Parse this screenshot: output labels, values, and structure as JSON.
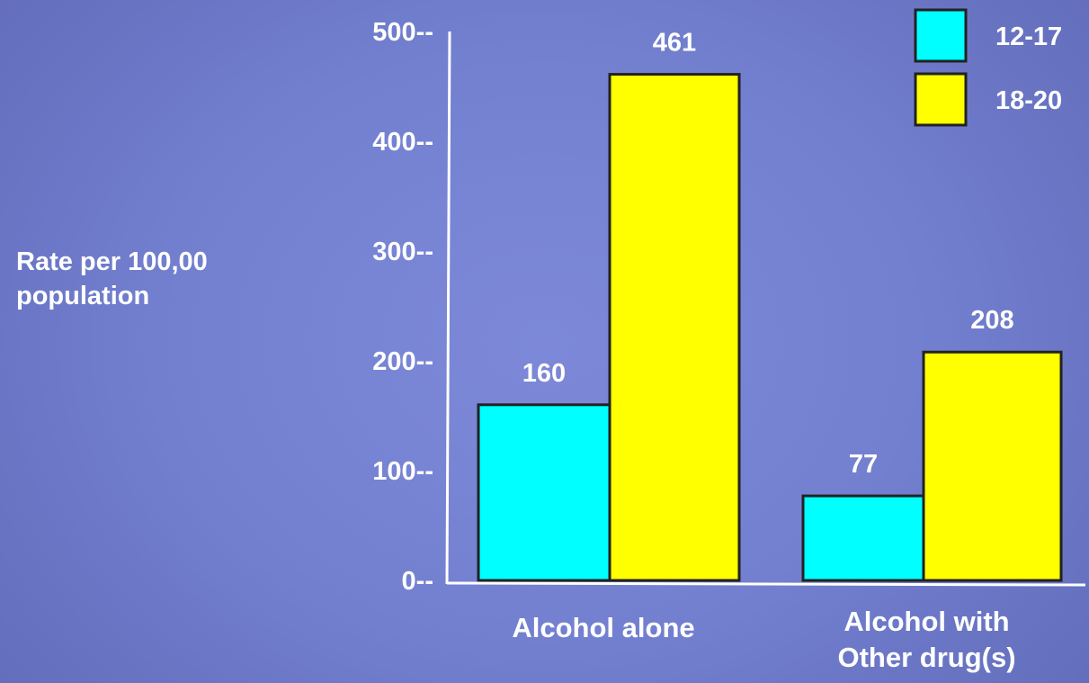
{
  "chart_data": {
    "type": "bar",
    "title": "",
    "xlabel": "",
    "ylabel": "Rate per 100,00\npopulation",
    "categories": [
      [
        "Alcohol alone"
      ],
      [
        "Alcohol with",
        "Other drug(s)"
      ]
    ],
    "series": [
      {
        "name": "12-17",
        "color": "#00ffff",
        "values": [
          160,
          77
        ]
      },
      {
        "name": "18-20",
        "color": "#ffff00",
        "values": [
          461,
          208
        ]
      }
    ],
    "data_labels": [
      [
        "160",
        "461"
      ],
      [
        "77",
        "208"
      ]
    ],
    "yticks": [
      "500--",
      "400--",
      "300--",
      "200--",
      "100--",
      "0--"
    ],
    "ytick_values": [
      500,
      400,
      300,
      200,
      100,
      0
    ],
    "ylim": [
      0,
      500
    ],
    "grid": false,
    "legend_position": "top-right",
    "axis_color": "#ffffff",
    "bar_outline_color": "#222222"
  }
}
